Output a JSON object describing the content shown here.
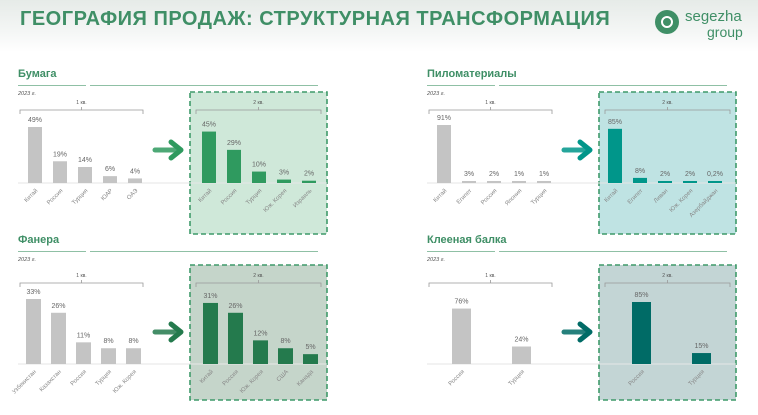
{
  "header": {
    "title": "ГЕОГРАФИЯ ПРОДАЖ: СТРУКТУРНАЯ ТРАНСФОРМАЦИЯ",
    "logo_line1": "segezha",
    "logo_line2": "group"
  },
  "colors": {
    "title": "#3f8f66",
    "q1_bar": "#c4c4c4"
  },
  "chart_data": [
    {
      "type": "bar",
      "title": "Бумага",
      "year": "2023 г.",
      "q1_label": "1 кв.",
      "q2_label": "2 кв.",
      "unit": "%",
      "accent": "#2f9a5f",
      "box_bg": "#cfe8d9",
      "box_border": "#3f9a6a",
      "q1": {
        "categories": [
          "Китай",
          "Россия",
          "Турция",
          "ЮАР",
          "ОАЭ"
        ],
        "values": [
          49,
          19,
          14,
          6,
          4
        ],
        "labels": [
          "49%",
          "19%",
          "14%",
          "6%",
          "4%"
        ]
      },
      "q2": {
        "categories": [
          "Китай",
          "Россия",
          "Турция",
          "Юж. Корея",
          "Израиль"
        ],
        "values": [
          45,
          29,
          10,
          3,
          2
        ],
        "labels": [
          "45%",
          "29%",
          "10%",
          "3%",
          "2%"
        ]
      }
    },
    {
      "type": "bar",
      "title": "Пиломатериалы",
      "year": "2023 г.",
      "q1_label": "1 кв.",
      "q2_label": "2 кв.",
      "unit": "%",
      "accent": "#00968a",
      "box_bg": "#bfe3e3",
      "box_border": "#3f9a6a",
      "q1": {
        "categories": [
          "Китай",
          "Египет",
          "Россия",
          "Япония",
          "Турция"
        ],
        "values": [
          91,
          3,
          2,
          1,
          1
        ],
        "labels": [
          "91%",
          "3%",
          "2%",
          "1%",
          "1%"
        ]
      },
      "q2": {
        "categories": [
          "Китай",
          "Египет",
          "Ливан",
          "Юж. Корея",
          "Азербайджан"
        ],
        "values": [
          85,
          8,
          2,
          2,
          0.2
        ],
        "labels": [
          "85%",
          "8%",
          "2%",
          "2%",
          "0,2%"
        ]
      }
    },
    {
      "type": "bar",
      "title": "Фанера",
      "year": "2023 г.",
      "q1_label": "1 кв.",
      "q2_label": "2 кв.",
      "unit": "%",
      "accent": "#247a4d",
      "box_bg": "#c5d5ca",
      "box_border": "#3f9a6a",
      "q1": {
        "categories": [
          "Узбекистан",
          "Казахстан",
          "Россия",
          "Турция",
          "Юж. Корея"
        ],
        "values": [
          33,
          26,
          11,
          8,
          8
        ],
        "labels": [
          "33%",
          "26%",
          "11%",
          "8%",
          "8%"
        ]
      },
      "q2": {
        "categories": [
          "Китай",
          "Россия",
          "Юж. Корея",
          "США",
          "Канада"
        ],
        "values": [
          31,
          26,
          12,
          8,
          5
        ],
        "labels": [
          "31%",
          "26%",
          "12%",
          "8%",
          "5%"
        ]
      }
    },
    {
      "type": "bar",
      "title": "Клееная балка",
      "year": "2023 г.",
      "q1_label": "1 кв.",
      "q2_label": "2 кв.",
      "unit": "%",
      "accent": "#006b66",
      "box_bg": "#c3d5d5",
      "box_border": "#3f9a6a",
      "q1": {
        "categories": [
          "Россия",
          "Турция"
        ],
        "values": [
          76,
          24
        ],
        "labels": [
          "76%",
          "24%"
        ]
      },
      "q2": {
        "categories": [
          "Россия",
          "Турция"
        ],
        "values": [
          85,
          15
        ],
        "labels": [
          "85%",
          "15%"
        ]
      }
    }
  ]
}
